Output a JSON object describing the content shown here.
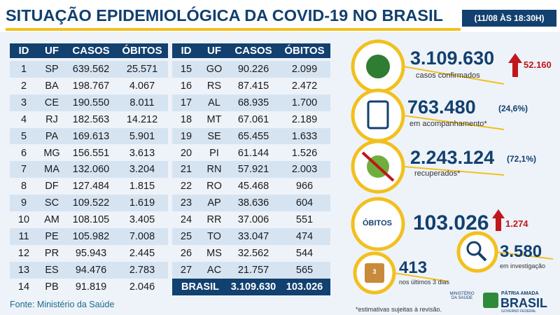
{
  "header": {
    "title": "SITUAÇÃO EPIDEMIOLÓGICA DA COVID-19 NO BRASIL",
    "date": "(11/08 ÀS 18:30H)"
  },
  "tables": [
    {
      "columns": [
        "ID",
        "UF",
        "CASOS",
        "ÓBITOS"
      ],
      "rows": [
        [
          "1",
          "SP",
          "639.562",
          "25.571"
        ],
        [
          "2",
          "BA",
          "198.767",
          "4.067"
        ],
        [
          "3",
          "CE",
          "190.550",
          "8.011"
        ],
        [
          "4",
          "RJ",
          "182.563",
          "14.212"
        ],
        [
          "5",
          "PA",
          "169.613",
          "5.901"
        ],
        [
          "6",
          "MG",
          "156.551",
          "3.613"
        ],
        [
          "7",
          "MA",
          "132.060",
          "3.204"
        ],
        [
          "8",
          "DF",
          "127.484",
          "1.815"
        ],
        [
          "9",
          "SC",
          "109.522",
          "1.619"
        ],
        [
          "10",
          "AM",
          "108.105",
          "3.405"
        ],
        [
          "11",
          "PE",
          "105.982",
          "7.008"
        ],
        [
          "12",
          "PR",
          "95.943",
          "2.445"
        ],
        [
          "13",
          "ES",
          "94.476",
          "2.783"
        ],
        [
          "14",
          "PB",
          "91.819",
          "2.046"
        ]
      ]
    },
    {
      "columns": [
        "ID",
        "UF",
        "CASOS",
        "ÓBITOS"
      ],
      "rows": [
        [
          "15",
          "GO",
          "90.226",
          "2.099"
        ],
        [
          "16",
          "RS",
          "87.415",
          "2.472"
        ],
        [
          "17",
          "AL",
          "68.935",
          "1.700"
        ],
        [
          "18",
          "MT",
          "67.061",
          "2.189"
        ],
        [
          "19",
          "SE",
          "65.455",
          "1.633"
        ],
        [
          "20",
          "PI",
          "61.144",
          "1.526"
        ],
        [
          "21",
          "RN",
          "57.921",
          "2.003"
        ],
        [
          "22",
          "RO",
          "45.468",
          "966"
        ],
        [
          "23",
          "AP",
          "38.636",
          "604"
        ],
        [
          "24",
          "RR",
          "37.006",
          "551"
        ],
        [
          "25",
          "TO",
          "33.047",
          "474"
        ],
        [
          "26",
          "MS",
          "32.562",
          "544"
        ],
        [
          "27",
          "AC",
          "21.757",
          "565"
        ]
      ],
      "total": [
        "BRASIL",
        "3.109.630",
        "103.026"
      ]
    }
  ],
  "source": "Fonte: Ministério da Saúde",
  "stats": {
    "confirmed": {
      "value": "3.109.630",
      "increase": "52.160",
      "label": "casos confirmados"
    },
    "monitoring": {
      "value": "763.480",
      "percent": "(24,6%)",
      "label": "em acompanhamento*"
    },
    "recovered": {
      "value": "2.243.124",
      "percent": "(72,1%)",
      "label": "recuperados*"
    },
    "deaths": {
      "badge": "ÓBITOS",
      "value": "103.026",
      "increase": "1.274"
    },
    "investigation": {
      "value": "3.580",
      "label": "em investigação"
    },
    "recent": {
      "icon": "3",
      "value": "413",
      "label": "nos últimos 3 dias"
    }
  },
  "footnote": "*estimativas sujeitas à revisão.",
  "logo": {
    "ministry": "MINISTÉRIO DA SAÚDE",
    "motto": "PÁTRIA AMADA",
    "country": "BRASIL",
    "government": "GOVERNO FEDERAL"
  }
}
